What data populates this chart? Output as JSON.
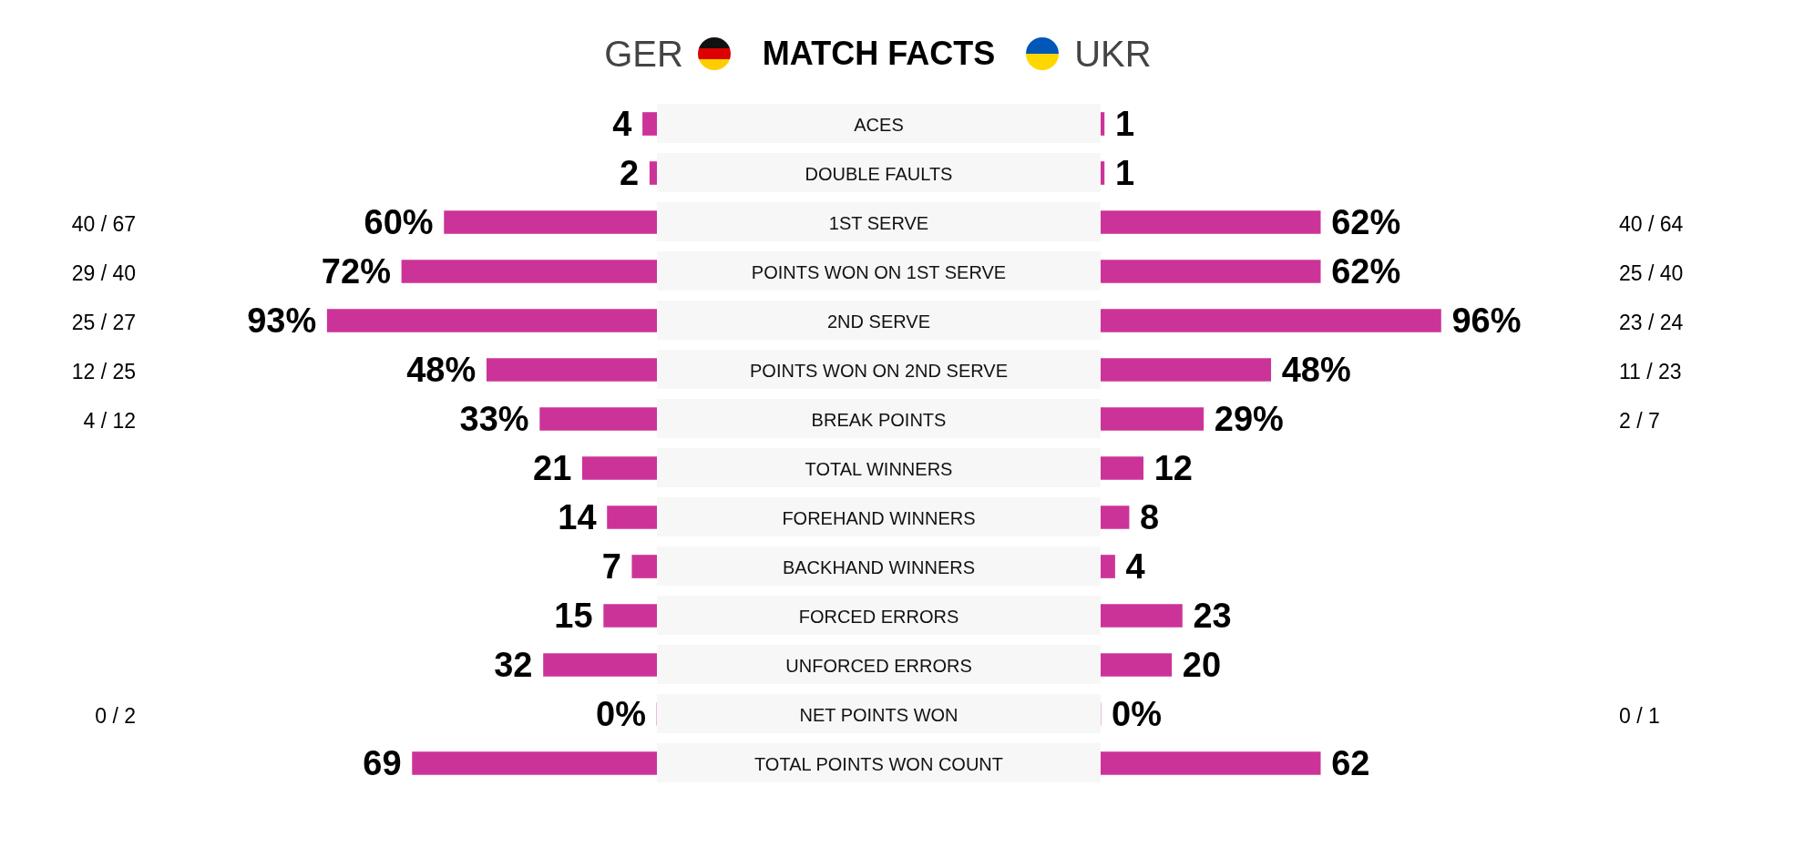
{
  "chart_data": [
    {
      "type": "bar",
      "orientation": "horizontal",
      "title": "MATCH FACTS",
      "categories": [
        "ACES",
        "DOUBLE FAULTS",
        "1ST SERVE",
        "POINTS WON ON 1ST SERVE",
        "2ND SERVE",
        "POINTS WON ON 2ND SERVE",
        "BREAK POINTS",
        "TOTAL WINNERS",
        "FOREHAND WINNERS",
        "BACKHAND WINNERS",
        "FORCED ERRORS",
        "UNFORCED ERRORS",
        "NET POINTS WON",
        "TOTAL POINTS WON COUNT"
      ],
      "series": [
        {
          "name": "GER",
          "color": "#cc3399",
          "values": [
            4,
            2,
            60,
            72,
            93,
            48,
            33,
            21,
            14,
            7,
            15,
            32,
            0,
            69
          ],
          "value_labels": [
            "4",
            "2",
            "60%",
            "72%",
            "93%",
            "48%",
            "33%",
            "21",
            "14",
            "7",
            "15",
            "32",
            "0%",
            "69"
          ]
        }
      ],
      "tick_labels": "y",
      "annotations": [
        null,
        null,
        "40 / 67",
        "29 / 40",
        "25 / 27",
        "12 / 25",
        "4 / 12",
        null,
        null,
        null,
        null,
        null,
        "0 / 2",
        null
      ]
    },
    {
      "type": "bar",
      "orientation": "horizontal",
      "categories": [
        null,
        null,
        null,
        null,
        null,
        null,
        null,
        null,
        null,
        null,
        null,
        null,
        null,
        null
      ],
      "series": [
        {
          "name": "UKR",
          "color": "#cc3399",
          "values": [
            1,
            1,
            62,
            62,
            96,
            48,
            29,
            12,
            8,
            4,
            23,
            20,
            0,
            62
          ],
          "value_labels": [
            "1",
            "1",
            "62%",
            "62%",
            "96%",
            "48%",
            "29%",
            "12",
            "8",
            "4",
            "23",
            "20",
            "0%",
            "62"
          ]
        }
      ],
      "tick_labels": false,
      "annotations": [
        null,
        null,
        "40 / 64",
        "25 / 40",
        "23 / 24",
        "11 / 23",
        "2 / 7",
        null,
        null,
        null,
        null,
        null,
        "0 / 1",
        null
      ]
    }
  ]
}
